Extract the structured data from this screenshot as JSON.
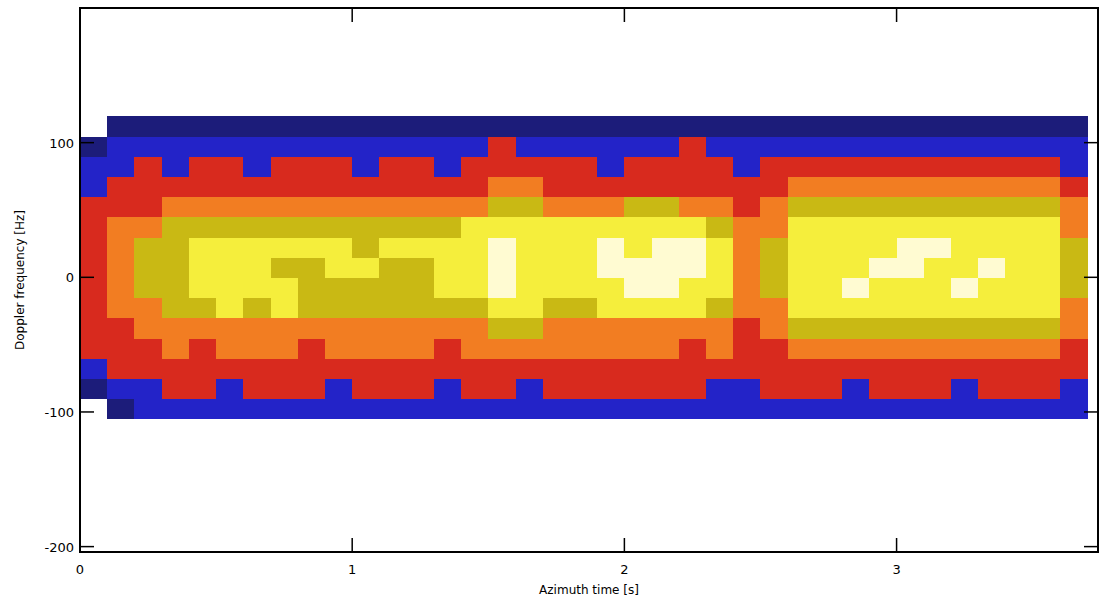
{
  "chart_data": {
    "type": "heatmap",
    "x_label": "Azimuth time [s]",
    "y_label": "Doppler frequency [Hz]",
    "xlim": [
      0,
      3.74
    ],
    "ylim": [
      -204,
      200
    ],
    "xticks": [
      0,
      1,
      2,
      3
    ],
    "yticks": [
      -200,
      -100,
      0,
      100
    ],
    "grid": false,
    "x_edges": [
      0,
      0.1,
      0.2,
      0.3,
      0.4,
      0.5,
      0.6,
      0.7,
      0.8,
      0.9,
      1.0,
      1.1,
      1.2,
      1.3,
      1.4,
      1.5,
      1.6,
      1.7,
      1.8,
      1.9,
      2.0,
      2.1,
      2.2,
      2.3,
      2.4,
      2.5,
      2.6,
      2.7,
      2.8,
      2.9,
      3.0,
      3.1,
      3.2,
      3.3,
      3.4,
      3.5,
      3.6,
      3.7
    ],
    "y_edges": [
      -105,
      -90,
      -75,
      -60,
      -45,
      -30,
      -15,
      0,
      15,
      30,
      45,
      60,
      75,
      90,
      105,
      120
    ],
    "cells": [
      [
        0,
        1,
        2,
        2,
        2,
        2,
        2,
        2,
        2,
        2,
        2,
        2,
        2,
        2,
        2,
        2,
        2,
        2,
        2,
        2,
        2,
        2,
        2,
        2,
        2,
        2,
        2,
        2,
        2,
        2,
        2,
        2,
        2,
        2,
        2,
        2,
        2
      ],
      [
        1,
        2,
        2,
        3,
        3,
        2,
        3,
        3,
        3,
        2,
        3,
        3,
        3,
        2,
        3,
        3,
        2,
        3,
        3,
        3,
        3,
        3,
        3,
        2,
        2,
        3,
        3,
        3,
        2,
        3,
        3,
        3,
        2,
        3,
        3,
        3,
        2
      ],
      [
        2,
        3,
        3,
        3,
        3,
        3,
        3,
        3,
        3,
        3,
        3,
        3,
        3,
        3,
        3,
        3,
        3,
        3,
        3,
        3,
        3,
        3,
        3,
        3,
        3,
        3,
        3,
        3,
        3,
        3,
        3,
        3,
        3,
        3,
        3,
        3,
        3
      ],
      [
        3,
        3,
        3,
        4,
        3,
        4,
        4,
        4,
        3,
        4,
        4,
        4,
        4,
        3,
        4,
        4,
        4,
        4,
        4,
        4,
        4,
        4,
        3,
        4,
        3,
        3,
        4,
        4,
        4,
        4,
        4,
        4,
        4,
        4,
        4,
        4,
        3
      ],
      [
        3,
        3,
        4,
        4,
        4,
        4,
        4,
        4,
        4,
        4,
        4,
        4,
        4,
        4,
        4,
        5,
        5,
        4,
        4,
        4,
        4,
        4,
        4,
        4,
        3,
        4,
        5,
        5,
        5,
        5,
        5,
        5,
        5,
        5,
        5,
        5,
        4
      ],
      [
        3,
        4,
        4,
        5,
        5,
        6,
        5,
        6,
        5,
        5,
        5,
        5,
        5,
        5,
        5,
        6,
        6,
        5,
        5,
        6,
        6,
        6,
        6,
        5,
        4,
        4,
        6,
        6,
        6,
        6,
        6,
        6,
        6,
        6,
        6,
        6,
        4
      ],
      [
        3,
        4,
        5,
        5,
        6,
        6,
        6,
        6,
        5,
        5,
        5,
        5,
        5,
        6,
        6,
        7,
        6,
        6,
        6,
        6,
        7,
        7,
        6,
        6,
        4,
        5,
        6,
        6,
        7,
        6,
        6,
        6,
        7,
        6,
        6,
        6,
        5
      ],
      [
        3,
        4,
        5,
        5,
        6,
        6,
        6,
        5,
        5,
        6,
        6,
        5,
        5,
        6,
        6,
        7,
        6,
        6,
        6,
        7,
        7,
        7,
        7,
        6,
        4,
        5,
        6,
        6,
        6,
        7,
        7,
        6,
        6,
        7,
        6,
        6,
        5
      ],
      [
        3,
        4,
        5,
        5,
        6,
        6,
        6,
        6,
        6,
        6,
        5,
        6,
        6,
        6,
        6,
        7,
        6,
        6,
        6,
        7,
        6,
        7,
        7,
        6,
        4,
        5,
        6,
        6,
        6,
        6,
        7,
        7,
        6,
        6,
        6,
        6,
        5
      ],
      [
        3,
        4,
        4,
        5,
        5,
        5,
        5,
        5,
        5,
        5,
        5,
        5,
        5,
        5,
        6,
        6,
        6,
        6,
        6,
        6,
        6,
        6,
        6,
        5,
        4,
        4,
        6,
        6,
        6,
        6,
        6,
        6,
        6,
        6,
        6,
        6,
        4
      ],
      [
        3,
        3,
        3,
        4,
        4,
        4,
        4,
        4,
        4,
        4,
        4,
        4,
        4,
        4,
        4,
        5,
        5,
        4,
        4,
        4,
        5,
        5,
        4,
        4,
        3,
        4,
        5,
        5,
        5,
        5,
        5,
        5,
        5,
        5,
        5,
        5,
        4
      ],
      [
        2,
        3,
        3,
        3,
        3,
        3,
        3,
        3,
        3,
        3,
        3,
        3,
        3,
        3,
        3,
        4,
        4,
        3,
        3,
        3,
        3,
        3,
        3,
        3,
        3,
        3,
        4,
        4,
        4,
        4,
        4,
        4,
        4,
        4,
        4,
        4,
        3
      ],
      [
        2,
        2,
        3,
        2,
        3,
        3,
        2,
        3,
        3,
        3,
        2,
        3,
        3,
        2,
        3,
        3,
        3,
        3,
        3,
        2,
        3,
        3,
        3,
        3,
        2,
        3,
        3,
        3,
        3,
        3,
        3,
        3,
        3,
        3,
        3,
        3,
        2
      ],
      [
        1,
        2,
        2,
        2,
        2,
        2,
        2,
        2,
        2,
        2,
        2,
        2,
        2,
        2,
        2,
        3,
        2,
        2,
        2,
        2,
        2,
        2,
        3,
        2,
        2,
        2,
        2,
        2,
        2,
        2,
        2,
        2,
        2,
        2,
        2,
        2,
        2
      ],
      [
        0,
        1,
        1,
        1,
        1,
        1,
        1,
        1,
        1,
        1,
        1,
        1,
        1,
        1,
        1,
        1,
        1,
        1,
        1,
        1,
        1,
        1,
        1,
        1,
        1,
        1,
        1,
        1,
        1,
        1,
        1,
        1,
        1,
        1,
        1,
        1,
        1
      ]
    ]
  }
}
